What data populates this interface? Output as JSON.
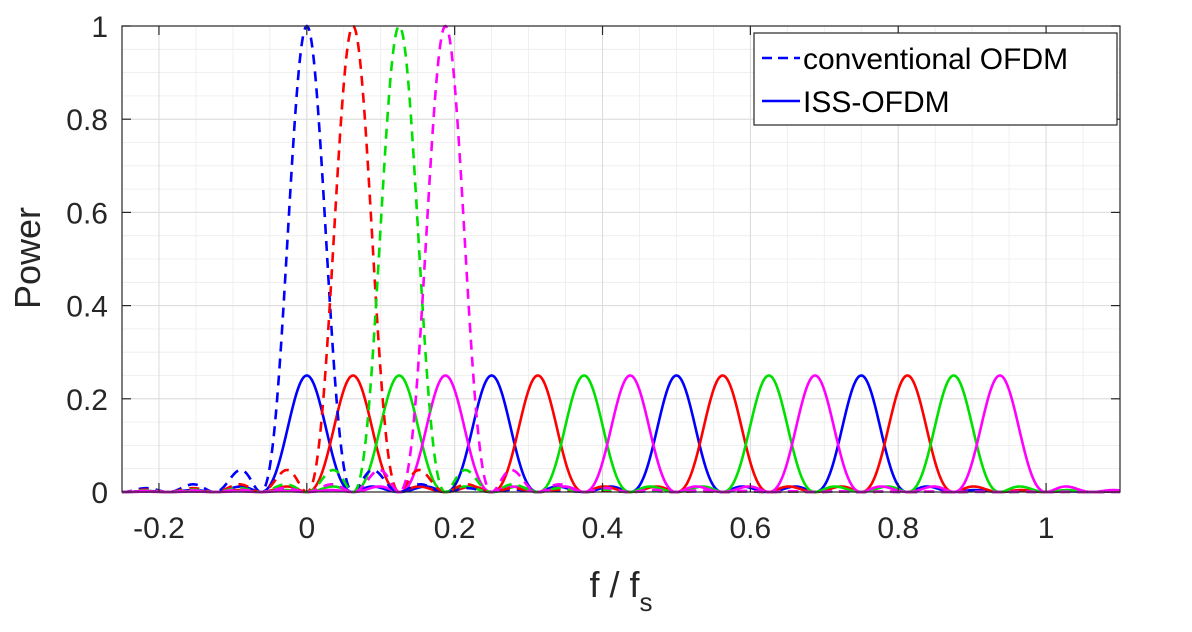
{
  "chart_data": {
    "type": "line",
    "xlabel": "f / f",
    "xlabel_subscript": "s",
    "ylabel": "Power",
    "xlim": [
      -0.25,
      1.1
    ],
    "ylim": [
      0,
      1
    ],
    "xticks": [
      -0.2,
      0,
      0.2,
      0.4,
      0.6,
      0.8,
      1
    ],
    "xtick_labels": [
      "-0.2",
      "0",
      "0.2",
      "0.4",
      "0.6",
      "0.8",
      "1"
    ],
    "yticks": [
      0,
      0.2,
      0.4,
      0.6,
      0.8,
      1
    ],
    "ytick_labels": [
      "0",
      "0.2",
      "0.4",
      "0.6",
      "0.8",
      "1"
    ],
    "grid": true,
    "legend_position": "top-right",
    "legend": [
      {
        "label": "conventional OFDM",
        "style": "dashed",
        "color": "#0000ff"
      },
      {
        "label": "ISS-OFDM",
        "style": "solid",
        "color": "#0000ff"
      }
    ],
    "colors": [
      "#0000ff",
      "#ff0000",
      "#00e000",
      "#ff00ff"
    ],
    "series": [
      {
        "style": "dashed",
        "color": "#0000ff",
        "peak_x": 0,
        "peak_y": 1,
        "main_lobe_halfwidth": 0.0625
      },
      {
        "style": "dashed",
        "color": "#ff0000",
        "peak_x": 0.0625,
        "peak_y": 1,
        "main_lobe_halfwidth": 0.0625
      },
      {
        "style": "dashed",
        "color": "#00e000",
        "peak_x": 0.125,
        "peak_y": 1,
        "main_lobe_halfwidth": 0.0625
      },
      {
        "style": "dashed",
        "color": "#ff00ff",
        "peak_x": 0.1875,
        "peak_y": 1,
        "main_lobe_halfwidth": 0.0625
      },
      {
        "style": "solid",
        "color": "#0000ff",
        "peaks_x": [
          0,
          0.25,
          0.5,
          0.75
        ],
        "peak_y": 0.25,
        "main_lobe_halfwidth": 0.0625
      },
      {
        "style": "solid",
        "color": "#ff0000",
        "peaks_x": [
          0.0625,
          0.3125,
          0.5625,
          0.8125
        ],
        "peak_y": 0.25,
        "main_lobe_halfwidth": 0.0625
      },
      {
        "style": "solid",
        "color": "#00e000",
        "peaks_x": [
          0.125,
          0.375,
          0.625,
          0.875
        ],
        "peak_y": 0.25,
        "main_lobe_halfwidth": 0.0625
      },
      {
        "style": "solid",
        "color": "#ff00ff",
        "peaks_x": [
          0.1875,
          0.4375,
          0.6875,
          0.9375
        ],
        "peak_y": 0.25,
        "main_lobe_halfwidth": 0.0625
      }
    ]
  }
}
